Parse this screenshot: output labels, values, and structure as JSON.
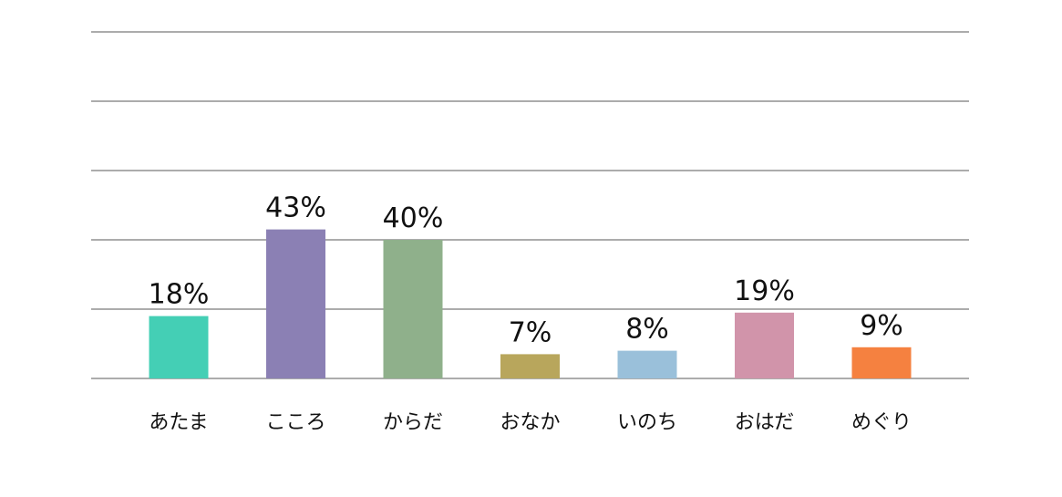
{
  "chart_data": {
    "type": "bar",
    "categories": [
      "あたま",
      "こころ",
      "からだ",
      "おなか",
      "いのち",
      "おはだ",
      "めぐり"
    ],
    "values": [
      18,
      43,
      40,
      7,
      8,
      19,
      9
    ],
    "data_labels": [
      "18%",
      "43%",
      "40%",
      "7%",
      "8%",
      "19%",
      "9%"
    ],
    "colors": [
      "#44cfb5",
      "#8b80b4",
      "#8fb08b",
      "#b8a65c",
      "#9ac0da",
      "#d194aa",
      "#f58140"
    ],
    "ylim": [
      0,
      100
    ],
    "gridline_values": [
      0,
      20,
      40,
      60,
      80,
      100
    ],
    "grid": true,
    "legend": "none",
    "title": "",
    "xlabel": "",
    "ylabel": "",
    "y_tick_labels_shown": false
  }
}
